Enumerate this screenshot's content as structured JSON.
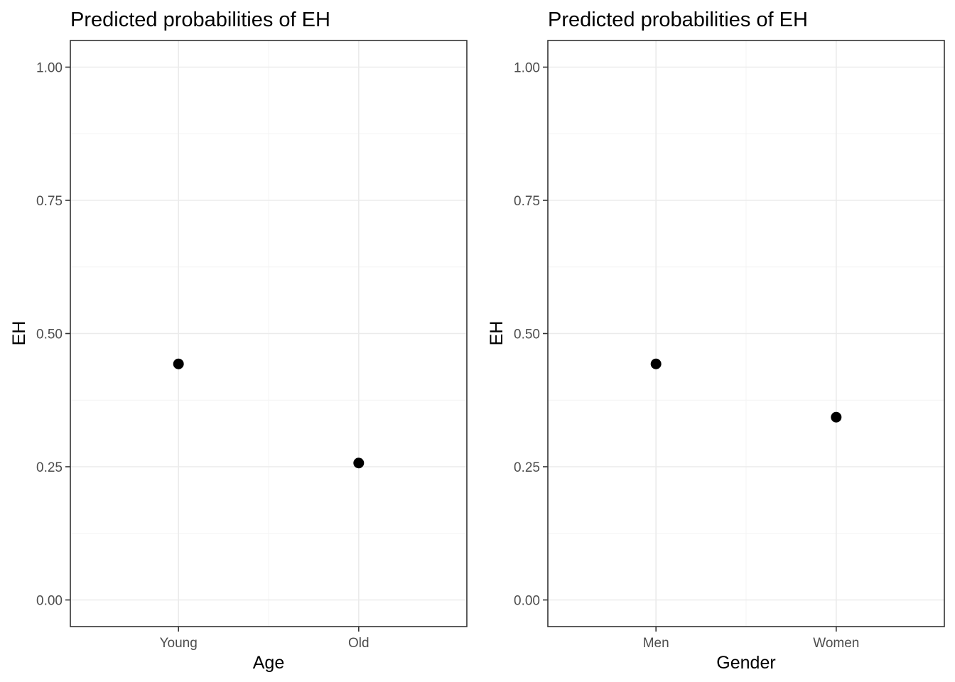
{
  "chart_data": [
    {
      "type": "scatter",
      "title": "Predicted probabilities of EH",
      "xlabel": "Age",
      "ylabel": "EH",
      "categories": [
        "Young",
        "Old"
      ],
      "values": [
        0.443,
        0.257
      ],
      "ylim": [
        -0.05,
        1.05
      ],
      "yticks": [
        0.0,
        0.25,
        0.5,
        0.75,
        1.0
      ],
      "ytick_labels": [
        "0.00",
        "0.25",
        "0.50",
        "0.75",
        "1.00"
      ],
      "grid": true,
      "legend": "none"
    },
    {
      "type": "scatter",
      "title": "Predicted probabilities of EH",
      "xlabel": "Gender",
      "ylabel": "EH",
      "categories": [
        "Men",
        "Women"
      ],
      "values": [
        0.443,
        0.343
      ],
      "ylim": [
        -0.05,
        1.05
      ],
      "yticks": [
        0.0,
        0.25,
        0.5,
        0.75,
        1.0
      ],
      "ytick_labels": [
        "0.00",
        "0.25",
        "0.50",
        "0.75",
        "1.00"
      ],
      "grid": true,
      "legend": "none"
    }
  ],
  "colors": {
    "point": "#000000",
    "grid": "#ebebeb",
    "border": "#333333",
    "tick_text": "#4d4d4d"
  }
}
